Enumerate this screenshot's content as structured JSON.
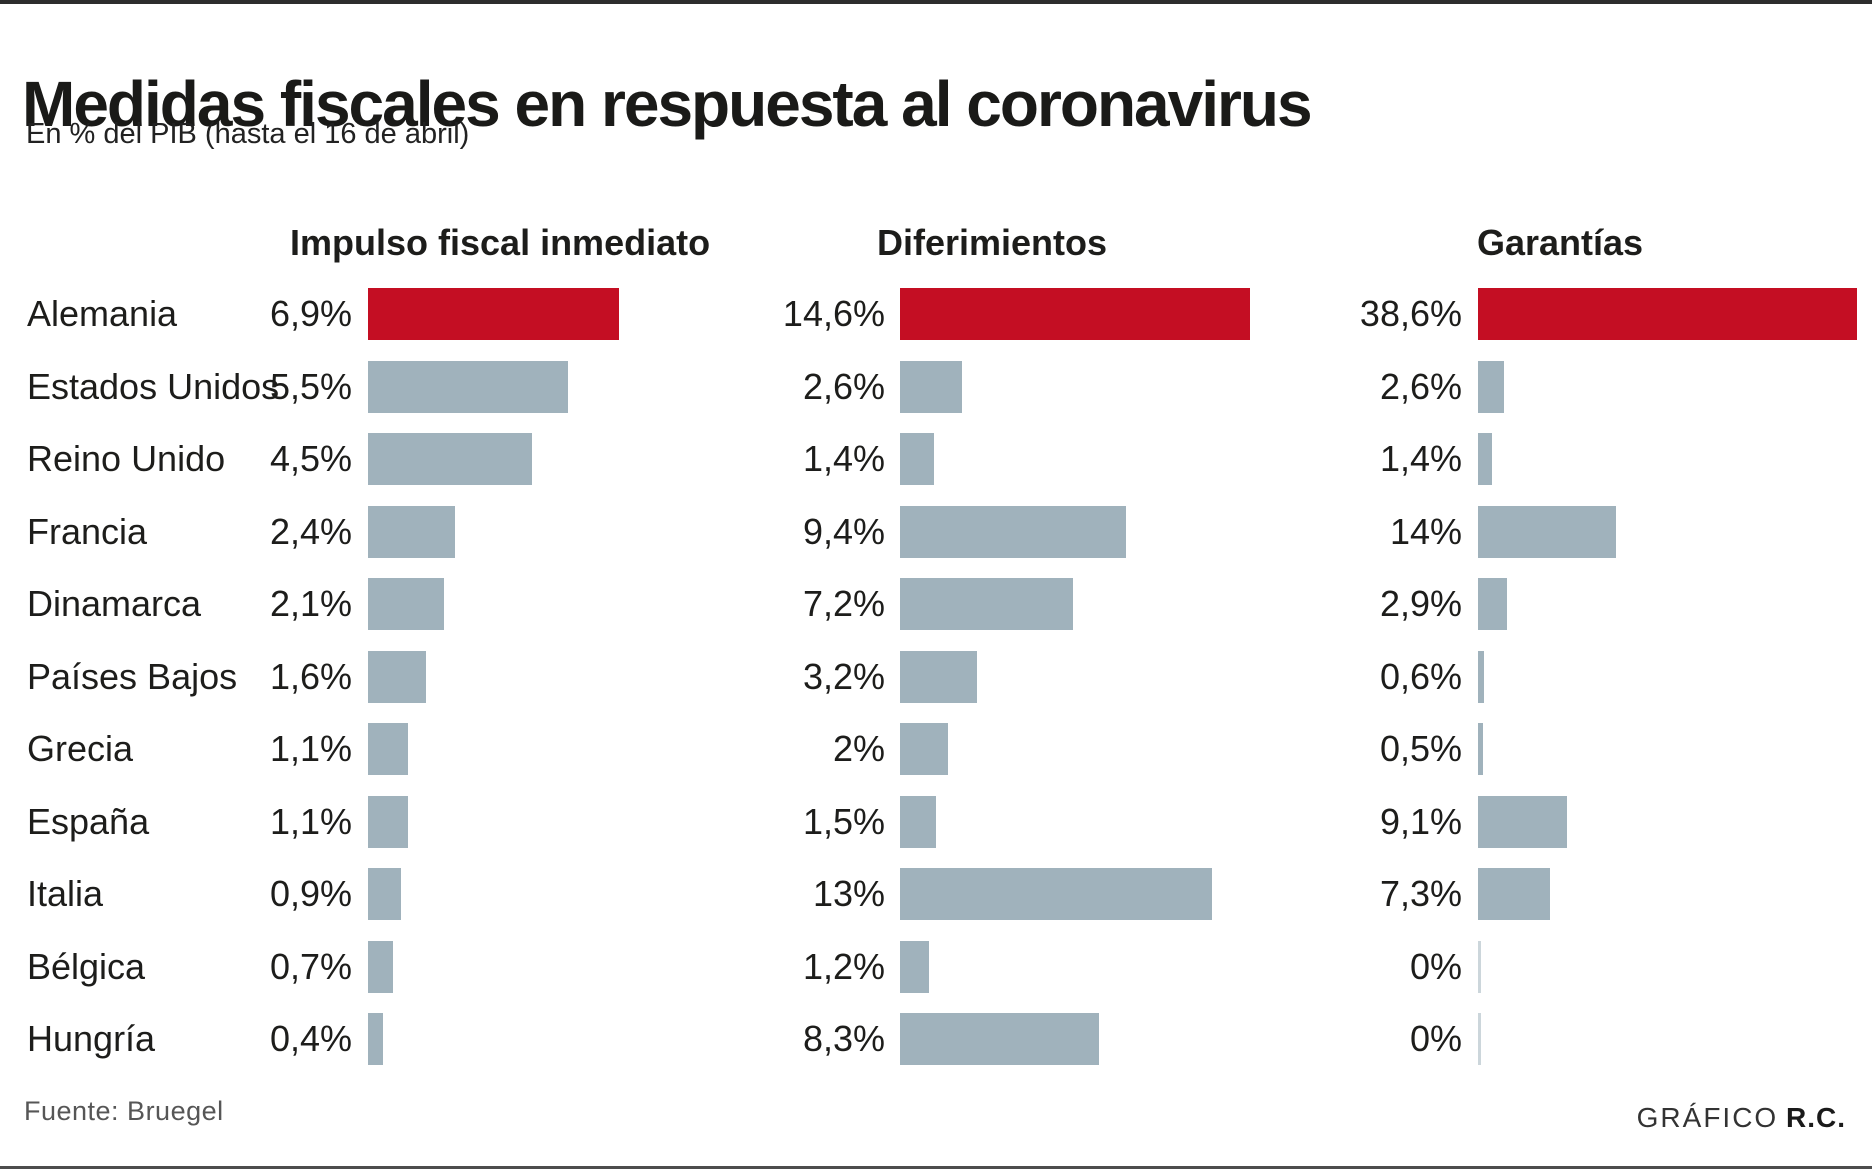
{
  "header": {
    "title": "Medidas fiscales en respuesta al coronavirus",
    "subtitle": "En % del PIB (hasta el 16 de abril)"
  },
  "footer": {
    "source": "Fuente: Bruegel",
    "credit_label": "GRÁFICO",
    "credit_brand": "R.C."
  },
  "colors": {
    "highlight_red": "#c40e23",
    "bar_gray": "#a0b2bc",
    "zero_hairline": "#ccd6db",
    "text_dark": "#1d1d1b"
  },
  "chart_data": {
    "type": "bar",
    "orientation": "horizontal",
    "title": "Medidas fiscales en respuesta al coronavirus",
    "subtitle_unit": "En % del PIB (hasta el 16 de abril)",
    "value_unit": "% del PIB",
    "highlight_category": "Alemania",
    "legend_position": "none",
    "grid": false,
    "categories": [
      "Alemania",
      "Estados Unidos",
      "Reino Unido",
      "Francia",
      "Dinamarca",
      "Países Bajos",
      "Grecia",
      "España",
      "Italia",
      "Bélgica",
      "Hungría"
    ],
    "series": [
      {
        "name": "Impulso fiscal inmediato",
        "values": [
          6.9,
          5.5,
          4.5,
          2.4,
          2.1,
          1.6,
          1.1,
          1.1,
          0.9,
          0.7,
          0.4
        ],
        "labels": [
          "6,9%",
          "5,5%",
          "4,5%",
          "2,4%",
          "2,1%",
          "1,6%",
          "1,1%",
          "1,1%",
          "0,9%",
          "0,7%",
          "0,4%"
        ],
        "axis_max": 6.9
      },
      {
        "name": "Diferimientos",
        "values": [
          14.6,
          2.6,
          1.4,
          9.4,
          7.2,
          3.2,
          2,
          1.5,
          13,
          1.2,
          8.3
        ],
        "labels": [
          "14,6%",
          "2,6%",
          "1,4%",
          "9,4%",
          "7,2%",
          "3,2%",
          "2%",
          "1,5%",
          "13%",
          "1,2%",
          "8,3%"
        ],
        "axis_max": 14.6
      },
      {
        "name": "Garantías",
        "values": [
          38.6,
          2.6,
          1.4,
          14,
          2.9,
          0.6,
          0.5,
          9.1,
          7.3,
          0,
          0
        ],
        "labels": [
          "38,6%",
          "2,6%",
          "1,4%",
          "14%",
          "2,9%",
          "0,6%",
          "0,5%",
          "9,1%",
          "7,3%",
          "0%",
          "0%"
        ],
        "axis_max": 38.6
      }
    ]
  }
}
